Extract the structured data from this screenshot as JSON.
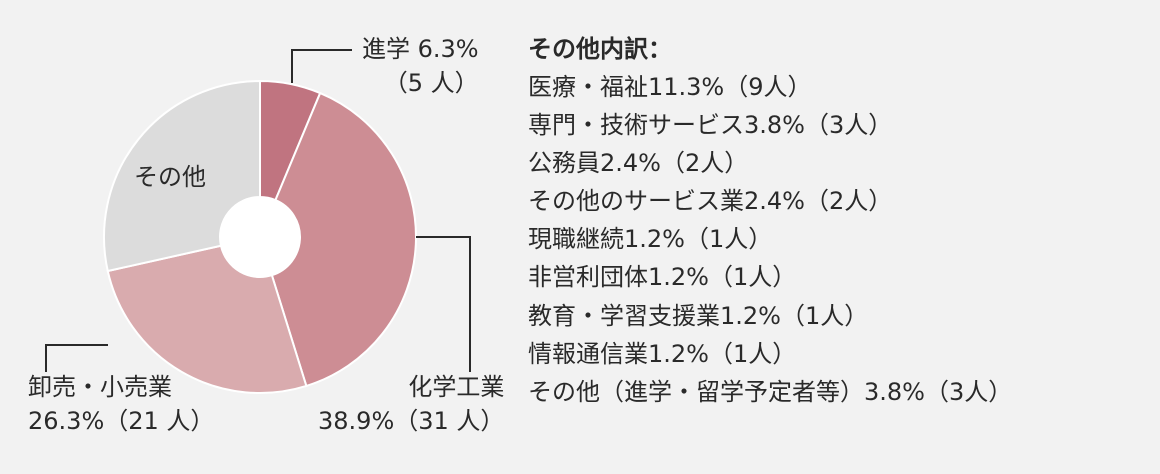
{
  "chart_data": {
    "type": "pie",
    "donut": true,
    "categories": [
      "進学",
      "化学工業",
      "卸売・小売業",
      "その他"
    ],
    "values": [
      6.3,
      38.9,
      26.3,
      28.5
    ],
    "counts": [
      5,
      31,
      21,
      null
    ],
    "colors": [
      "#c07480",
      "#cd8d94",
      "#d9abae",
      "#dcdcdc"
    ],
    "labels": {
      "shingaku": {
        "line1": "進学 6.3%",
        "line2": "（5 人）"
      },
      "kagaku": {
        "line1": "化学工業",
        "line2": "38.9%（31 人）"
      },
      "oroshi": {
        "line1": "卸売・小売業",
        "line2": "26.3%（21 人）"
      },
      "other": {
        "line1": "その他"
      }
    }
  },
  "breakdown": {
    "title": "その他内訳：",
    "items": [
      "医療・福祉11.3%（9人）",
      "専門・技術サービス3.8%（3人）",
      "公務員2.4%（2人）",
      "その他のサービス業2.4%（2人）",
      "現職継続1.2%（1人）",
      "非営利団体1.2%（1人）",
      "教育・学習支援業1.2%（1人）",
      "情報通信業1.2%（1人）",
      "その他（進学・留学予定者等）3.8%（3人）"
    ]
  }
}
